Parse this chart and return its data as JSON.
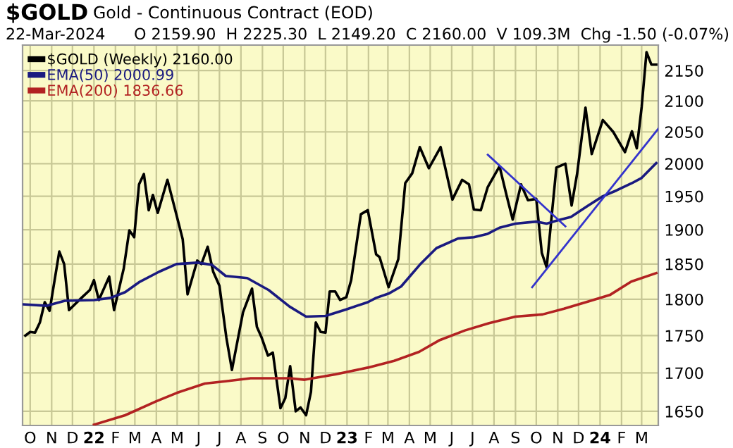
{
  "chart_data": {
    "type": "line",
    "title": "$GOLD",
    "subtitle": "Gold - Continuous Contract (EOD)",
    "annotations": [
      "22-Mar-2024",
      "O 2159.90  H 2225.30  L 2149.20  C 2160.00  V 109.3M  Chg -1.50 (-0.07%)"
    ],
    "log": true,
    "grid": true,
    "legend": "top left",
    "line_style": "solid",
    "marker": "none",
    "xlim": [
      "2021-09-20",
      "2024-03-25"
    ],
    "xticks": [
      {
        "value": "2021-10-01",
        "label": "O"
      },
      {
        "value": "2021-11-01",
        "label": "N"
      },
      {
        "value": "2021-12-01",
        "label": "D"
      },
      {
        "value": "2022-01-01",
        "label": "22"
      },
      {
        "value": "2022-02-01",
        "label": "F"
      },
      {
        "value": "2022-03-01",
        "label": "M"
      },
      {
        "value": "2022-04-01",
        "label": "A"
      },
      {
        "value": "2022-05-01",
        "label": "M"
      },
      {
        "value": "2022-06-01",
        "label": "J"
      },
      {
        "value": "2022-07-01",
        "label": "J"
      },
      {
        "value": "2022-08-01",
        "label": "A"
      },
      {
        "value": "2022-09-01",
        "label": "S"
      },
      {
        "value": "2022-10-01",
        "label": "O"
      },
      {
        "value": "2022-11-01",
        "label": "N"
      },
      {
        "value": "2022-12-01",
        "label": "D"
      },
      {
        "value": "2023-01-01",
        "label": "23"
      },
      {
        "value": "2023-02-01",
        "label": "F"
      },
      {
        "value": "2023-03-01",
        "label": "M"
      },
      {
        "value": "2023-04-01",
        "label": "A"
      },
      {
        "value": "2023-05-01",
        "label": "M"
      },
      {
        "value": "2023-06-01",
        "label": "J"
      },
      {
        "value": "2023-07-01",
        "label": "J"
      },
      {
        "value": "2023-08-01",
        "label": "A"
      },
      {
        "value": "2023-09-01",
        "label": "S"
      },
      {
        "value": "2023-10-01",
        "label": "O"
      },
      {
        "value": "2023-11-01",
        "label": "N"
      },
      {
        "value": "2023-12-01",
        "label": "D"
      },
      {
        "value": "2024-01-01",
        "label": "24"
      },
      {
        "value": "2024-02-01",
        "label": "F"
      },
      {
        "value": "2024-03-01",
        "label": "M"
      }
    ],
    "ylim": [
      1632,
      2193
    ],
    "yticks": [
      1650,
      1700,
      1750,
      1800,
      1850,
      1900,
      1950,
      2000,
      2050,
      2100,
      2150
    ],
    "series": [
      {
        "name": "$GOLD (Weekly) 2160.00",
        "color": "#000000",
        "x": [
          "2021-09-24",
          "2021-10-01",
          "2021-10-08",
          "2021-10-15",
          "2021-10-22",
          "2021-10-29",
          "2021-11-12",
          "2021-11-19",
          "2021-11-26",
          "2021-12-15",
          "2021-12-26",
          "2022-01-01",
          "2022-01-08",
          "2022-01-23",
          "2022-01-30",
          "2022-02-13",
          "2022-02-21",
          "2022-02-28",
          "2022-03-07",
          "2022-03-14",
          "2022-03-21",
          "2022-03-27",
          "2022-04-03",
          "2022-04-17",
          "2022-04-30",
          "2022-05-09",
          "2022-05-16",
          "2022-05-30",
          "2022-06-05",
          "2022-06-14",
          "2022-06-22",
          "2022-07-01",
          "2022-07-11",
          "2022-07-19",
          "2022-08-04",
          "2022-08-17",
          "2022-08-24",
          "2022-08-31",
          "2022-09-09",
          "2022-09-16",
          "2022-09-27",
          "2022-10-04",
          "2022-10-11",
          "2022-10-19",
          "2022-10-26",
          "2022-11-03",
          "2022-11-10",
          "2022-11-17",
          "2022-11-24",
          "2022-12-01",
          "2022-12-07",
          "2022-12-15",
          "2022-12-22",
          "2022-12-31",
          "2023-01-07",
          "2023-01-21",
          "2023-01-31",
          "2023-02-12",
          "2023-02-17",
          "2023-03-02",
          "2023-03-16",
          "2023-03-26",
          "2023-04-05",
          "2023-04-16",
          "2023-04-29",
          "2023-05-16",
          "2023-06-02",
          "2023-06-16",
          "2023-06-26",
          "2023-07-03",
          "2023-07-13",
          "2023-07-23",
          "2023-08-09",
          "2023-08-19",
          "2023-08-28",
          "2023-09-09",
          "2023-09-19",
          "2023-10-01",
          "2023-10-09",
          "2023-10-16",
          "2023-10-30",
          "2023-11-12",
          "2023-11-21",
          "2023-11-29",
          "2023-12-11",
          "2023-12-20",
          "2024-01-05",
          "2024-01-20",
          "2024-02-06",
          "2024-02-16",
          "2024-02-23",
          "2024-03-01",
          "2024-03-08",
          "2024-03-15",
          "2024-03-22"
        ],
        "values": [
          1750,
          1755,
          1754,
          1768,
          1796,
          1784,
          1868,
          1850,
          1785,
          1803,
          1813,
          1827,
          1799,
          1832,
          1785,
          1844,
          1899,
          1889,
          1968,
          1984,
          1929,
          1952,
          1925,
          1975,
          1922,
          1886,
          1807,
          1855,
          1850,
          1875,
          1839,
          1819,
          1747,
          1704,
          1782,
          1815,
          1762,
          1747,
          1723,
          1727,
          1654,
          1667,
          1709,
          1650,
          1655,
          1645,
          1675,
          1768,
          1755,
          1754,
          1811,
          1811,
          1799,
          1803,
          1827,
          1923,
          1929,
          1864,
          1860,
          1817,
          1857,
          1970,
          1985,
          2026,
          1993,
          2026,
          1945,
          1975,
          1968,
          1930,
          1929,
          1964,
          1996,
          1952,
          1915,
          1968,
          1944,
          1946,
          1866,
          1845,
          1994,
          2000,
          1936,
          1985,
          2089,
          2015,
          2069,
          2050,
          2018,
          2051,
          2024,
          2090,
          2181,
          2160,
          2160
        ]
      },
      {
        "name": "EMA(50) 2000.99",
        "color": "#1a1a80",
        "x": [
          "2021-09-20",
          "2021-10-25",
          "2021-11-20",
          "2022-01-01",
          "2022-01-25",
          "2022-02-15",
          "2022-03-07",
          "2022-04-05",
          "2022-04-30",
          "2022-05-30",
          "2022-06-20",
          "2022-07-10",
          "2022-08-10",
          "2022-09-10",
          "2022-10-10",
          "2022-11-03",
          "2022-12-01",
          "2022-12-31",
          "2023-01-31",
          "2023-02-12",
          "2023-03-02",
          "2023-03-20",
          "2023-04-16",
          "2023-05-10",
          "2023-06-10",
          "2023-07-03",
          "2023-07-23",
          "2023-08-09",
          "2023-09-01",
          "2023-10-01",
          "2023-10-16",
          "2023-11-01",
          "2023-11-20",
          "2023-12-15",
          "2024-01-05",
          "2024-01-25",
          "2024-02-16",
          "2024-03-01",
          "2024-03-22"
        ],
        "values": [
          1793,
          1791,
          1798,
          1799,
          1802,
          1810,
          1824,
          1839,
          1850,
          1852,
          1849,
          1833,
          1830,
          1813,
          1790,
          1776,
          1777,
          1786,
          1796,
          1802,
          1808,
          1818,
          1849,
          1873,
          1887,
          1889,
          1894,
          1903,
          1909,
          1912,
          1909,
          1914,
          1919,
          1936,
          1950,
          1959,
          1970,
          1978,
          2001
        ]
      },
      {
        "name": "EMA(200) 1836.66",
        "color": "#b22222",
        "x": [
          "2022-01-01",
          "2022-02-15",
          "2022-04-01",
          "2022-05-01",
          "2022-06-10",
          "2022-07-10",
          "2022-08-15",
          "2022-10-10",
          "2022-11-01",
          "2022-12-15",
          "2023-01-31",
          "2023-03-10",
          "2023-04-15",
          "2023-05-15",
          "2023-06-20",
          "2023-07-25",
          "2023-09-01",
          "2023-10-10",
          "2023-11-10",
          "2023-12-15",
          "2024-01-15",
          "2024-02-15",
          "2024-03-22"
        ],
        "values": [
          1633,
          1645,
          1663,
          1674,
          1686,
          1689,
          1693,
          1693,
          1691,
          1698,
          1707,
          1716,
          1728,
          1744,
          1757,
          1767,
          1776,
          1779,
          1787,
          1797,
          1806,
          1825,
          1837
        ]
      },
      {
        "color": "#3333cc",
        "x": [
          "2023-07-23",
          "2023-11-12"
        ],
        "values": [
          2014,
          1905
        ]
      },
      {
        "color": "#3333cc",
        "x": [
          "2023-09-25",
          "2024-03-25"
        ],
        "values": [
          1817,
          2055
        ]
      }
    ]
  }
}
